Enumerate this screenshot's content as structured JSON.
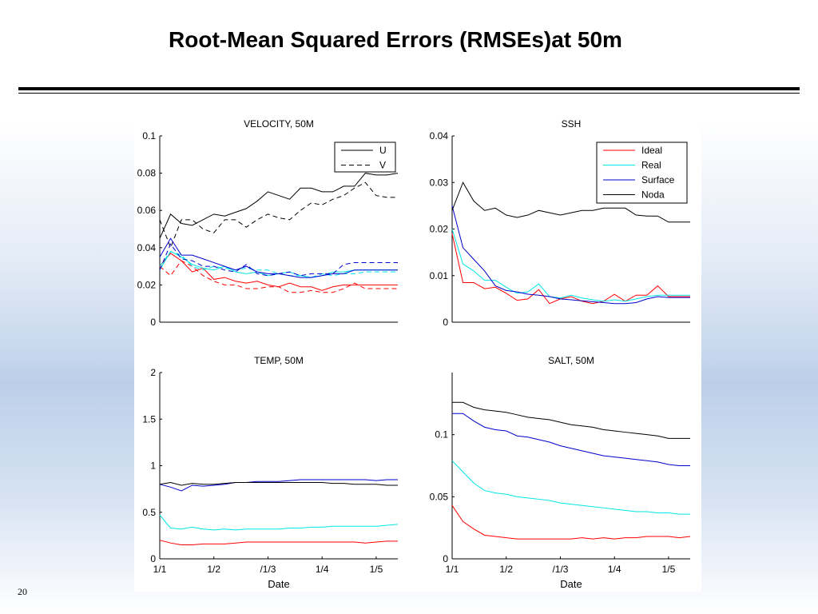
{
  "slide": {
    "title": "Root-Mean Squared Errors (RMSEs)at 50m",
    "page_number": "20"
  },
  "chart_data": [
    {
      "type": "line",
      "title": "VELOCITY, 50M",
      "xlabel": "",
      "ylabel": "",
      "xlim": [
        0,
        22
      ],
      "ylim": [
        0,
        0.1
      ],
      "yticks": [
        0,
        0.02,
        0.04,
        0.06,
        0.08,
        0.1
      ],
      "ytick_labels": [
        "0",
        "0.02",
        "0.04",
        "0.06",
        "0.08",
        "0.1"
      ],
      "xticks": [],
      "xtick_labels": [],
      "x": [
        0,
        1,
        2,
        3,
        4,
        5,
        6,
        7,
        8,
        9,
        10,
        11,
        12,
        13,
        14,
        15,
        16,
        17,
        18,
        19,
        20,
        21,
        22
      ],
      "legend": {
        "position": "top-right",
        "entries": [
          {
            "label": "U",
            "color": "#000000",
            "dash": "solid"
          },
          {
            "label": "V",
            "color": "#000000",
            "dash": "dashed"
          }
        ]
      },
      "series": [
        {
          "group": "U",
          "color": "#000000",
          "dash": "solid",
          "values": [
            0.045,
            0.058,
            0.053,
            0.052,
            0.055,
            0.058,
            0.057,
            0.059,
            0.061,
            0.065,
            0.07,
            0.068,
            0.066,
            0.072,
            0.072,
            0.07,
            0.07,
            0.073,
            0.073,
            0.08,
            0.079,
            0.079,
            0.08
          ]
        },
        {
          "group": "V",
          "color": "#000000",
          "dash": "dashed",
          "values": [
            0.055,
            0.04,
            0.055,
            0.055,
            0.05,
            0.048,
            0.055,
            0.055,
            0.051,
            0.055,
            0.058,
            0.056,
            0.055,
            0.06,
            0.064,
            0.063,
            0.066,
            0.068,
            0.072,
            0.075,
            0.068,
            0.067,
            0.067
          ]
        },
        {
          "group": "U",
          "color": "#ff0000",
          "dash": "solid",
          "values": [
            0.03,
            0.037,
            0.033,
            0.027,
            0.029,
            0.023,
            0.024,
            0.022,
            0.021,
            0.022,
            0.02,
            0.019,
            0.021,
            0.019,
            0.019,
            0.017,
            0.019,
            0.02,
            0.02,
            0.02,
            0.02,
            0.02,
            0.02
          ]
        },
        {
          "group": "V",
          "color": "#ff0000",
          "dash": "dashed",
          "values": [
            0.03,
            0.025,
            0.033,
            0.03,
            0.025,
            0.022,
            0.02,
            0.02,
            0.018,
            0.018,
            0.019,
            0.019,
            0.016,
            0.016,
            0.017,
            0.016,
            0.016,
            0.018,
            0.021,
            0.018,
            0.018,
            0.018,
            0.018
          ]
        },
        {
          "group": "U",
          "color": "#00e5e5",
          "dash": "solid",
          "values": [
            0.028,
            0.038,
            0.035,
            0.031,
            0.029,
            0.028,
            0.03,
            0.027,
            0.026,
            0.027,
            0.025,
            0.026,
            0.027,
            0.025,
            0.024,
            0.025,
            0.027,
            0.027,
            0.028,
            0.028,
            0.028,
            0.028,
            0.028
          ]
        },
        {
          "group": "V",
          "color": "#00e5e5",
          "dash": "dashed",
          "values": [
            0.03,
            0.038,
            0.036,
            0.03,
            0.028,
            0.03,
            0.029,
            0.028,
            0.029,
            0.028,
            0.028,
            0.026,
            0.025,
            0.025,
            0.024,
            0.026,
            0.025,
            0.026,
            0.026,
            0.027,
            0.027,
            0.027,
            0.027
          ]
        },
        {
          "group": "U",
          "color": "#0000cc",
          "dash": "solid",
          "values": [
            0.035,
            0.045,
            0.036,
            0.036,
            0.034,
            0.032,
            0.03,
            0.028,
            0.03,
            0.027,
            0.026,
            0.026,
            0.025,
            0.024,
            0.024,
            0.025,
            0.026,
            0.026,
            0.028,
            0.028,
            0.028,
            0.028,
            0.028
          ]
        },
        {
          "group": "V",
          "color": "#0000cc",
          "dash": "dashed",
          "values": [
            0.028,
            0.042,
            0.034,
            0.033,
            0.03,
            0.03,
            0.028,
            0.027,
            0.031,
            0.026,
            0.025,
            0.026,
            0.027,
            0.025,
            0.026,
            0.026,
            0.026,
            0.031,
            0.032,
            0.032,
            0.032,
            0.032,
            0.032
          ]
        }
      ]
    },
    {
      "type": "line",
      "title": "SSH",
      "xlabel": "",
      "ylabel": "",
      "xlim": [
        0,
        22
      ],
      "ylim": [
        0,
        0.04
      ],
      "yticks": [
        0,
        0.01,
        0.02,
        0.03,
        0.04
      ],
      "ytick_labels": [
        "0",
        "0.01",
        "0.02",
        "0.03",
        "0.04"
      ],
      "xticks": [],
      "xtick_labels": [],
      "x": [
        0,
        1,
        2,
        3,
        4,
        5,
        6,
        7,
        8,
        9,
        10,
        11,
        12,
        13,
        14,
        15,
        16,
        17,
        18,
        19,
        20,
        21,
        22
      ],
      "legend": {
        "position": "top-right",
        "entries": [
          {
            "label": "Ideal",
            "color": "#ff0000",
            "dash": "solid"
          },
          {
            "label": "Real",
            "color": "#00e5e5",
            "dash": "solid"
          },
          {
            "label": "Surface",
            "color": "#0000cc",
            "dash": "solid"
          },
          {
            "label": "Noda",
            "color": "#000000",
            "dash": "solid"
          }
        ]
      },
      "series": [
        {
          "name": "Ideal",
          "color": "#ff0000",
          "dash": "solid",
          "values": [
            0.019,
            0.0085,
            0.0085,
            0.0072,
            0.0075,
            0.0062,
            0.0047,
            0.005,
            0.007,
            0.004,
            0.005,
            0.0055,
            0.0045,
            0.004,
            0.0045,
            0.006,
            0.0045,
            0.0058,
            0.0058,
            0.0078,
            0.0055,
            0.0055,
            0.0055
          ]
        },
        {
          "name": "Real",
          "color": "#00e5e5",
          "dash": "solid",
          "values": [
            0.02,
            0.0125,
            0.011,
            0.009,
            0.009,
            0.0075,
            0.0062,
            0.0065,
            0.0082,
            0.0055,
            0.0052,
            0.0058,
            0.0052,
            0.0048,
            0.0045,
            0.0048,
            0.0045,
            0.005,
            0.0055,
            0.0058,
            0.0058,
            0.0058,
            0.0058
          ]
        },
        {
          "name": "Surface",
          "color": "#0000cc",
          "dash": "solid",
          "values": [
            0.025,
            0.016,
            0.0135,
            0.011,
            0.0078,
            0.0068,
            0.0065,
            0.006,
            0.0058,
            0.0055,
            0.005,
            0.0048,
            0.0046,
            0.0044,
            0.0042,
            0.004,
            0.004,
            0.0042,
            0.005,
            0.0055,
            0.0053,
            0.0053,
            0.0053
          ]
        },
        {
          "name": "Noda",
          "color": "#000000",
          "dash": "solid",
          "values": [
            0.024,
            0.03,
            0.026,
            0.024,
            0.0245,
            0.023,
            0.0225,
            0.023,
            0.024,
            0.0235,
            0.023,
            0.0235,
            0.024,
            0.024,
            0.0245,
            0.0245,
            0.0245,
            0.023,
            0.0228,
            0.0228,
            0.0215,
            0.0215,
            0.0215
          ]
        }
      ]
    },
    {
      "type": "line",
      "title": "TEMP, 50M",
      "xlabel": "Date",
      "ylabel": "",
      "xlim": [
        0,
        22
      ],
      "ylim": [
        0,
        2
      ],
      "yticks": [
        0,
        0.5,
        1,
        1.5,
        2
      ],
      "ytick_labels": [
        "0",
        "0.5",
        "1",
        "1.5",
        "2"
      ],
      "xticks": [
        0,
        5,
        10,
        15,
        20
      ],
      "xtick_labels": [
        "1/1",
        "1/2",
        "/1/3",
        "1/4",
        "1/5"
      ],
      "x": [
        0,
        1,
        2,
        3,
        4,
        5,
        6,
        7,
        8,
        9,
        10,
        11,
        12,
        13,
        14,
        15,
        16,
        17,
        18,
        19,
        20,
        21,
        22
      ],
      "series": [
        {
          "color": "#ff0000",
          "dash": "solid",
          "values": [
            0.2,
            0.17,
            0.15,
            0.15,
            0.16,
            0.16,
            0.16,
            0.17,
            0.18,
            0.18,
            0.18,
            0.18,
            0.18,
            0.18,
            0.18,
            0.18,
            0.18,
            0.18,
            0.18,
            0.17,
            0.18,
            0.19,
            0.19
          ]
        },
        {
          "color": "#00e5e5",
          "dash": "solid",
          "values": [
            0.47,
            0.33,
            0.32,
            0.34,
            0.32,
            0.31,
            0.32,
            0.31,
            0.32,
            0.32,
            0.32,
            0.32,
            0.33,
            0.33,
            0.34,
            0.34,
            0.35,
            0.35,
            0.35,
            0.35,
            0.35,
            0.36,
            0.37
          ]
        },
        {
          "color": "#0000cc",
          "dash": "solid",
          "values": [
            0.8,
            0.77,
            0.73,
            0.79,
            0.78,
            0.79,
            0.8,
            0.82,
            0.82,
            0.83,
            0.83,
            0.83,
            0.84,
            0.85,
            0.85,
            0.85,
            0.85,
            0.85,
            0.85,
            0.85,
            0.84,
            0.85,
            0.85
          ]
        },
        {
          "color": "#000000",
          "dash": "solid",
          "values": [
            0.8,
            0.82,
            0.79,
            0.81,
            0.8,
            0.8,
            0.81,
            0.82,
            0.82,
            0.82,
            0.82,
            0.82,
            0.82,
            0.82,
            0.82,
            0.82,
            0.81,
            0.81,
            0.8,
            0.8,
            0.8,
            0.79,
            0.79
          ]
        }
      ]
    },
    {
      "type": "line",
      "title": "SALT, 50M",
      "xlabel": "Date",
      "ylabel": "",
      "xlim": [
        0,
        22
      ],
      "ylim": [
        0,
        0.15
      ],
      "yticks": [
        0,
        0.05,
        0.1
      ],
      "ytick_labels": [
        "0",
        "0.05",
        "0.1"
      ],
      "xticks": [
        0,
        5,
        10,
        15,
        20
      ],
      "xtick_labels": [
        "1/1",
        "1/2",
        "/1/3",
        "1/4",
        "1/5"
      ],
      "x": [
        0,
        1,
        2,
        3,
        4,
        5,
        6,
        7,
        8,
        9,
        10,
        11,
        12,
        13,
        14,
        15,
        16,
        17,
        18,
        19,
        20,
        21,
        22
      ],
      "series": [
        {
          "color": "#ff0000",
          "dash": "solid",
          "values": [
            0.043,
            0.03,
            0.024,
            0.019,
            0.018,
            0.017,
            0.016,
            0.016,
            0.016,
            0.016,
            0.016,
            0.016,
            0.017,
            0.016,
            0.017,
            0.016,
            0.017,
            0.017,
            0.018,
            0.018,
            0.018,
            0.017,
            0.018
          ]
        },
        {
          "color": "#00e5e5",
          "dash": "solid",
          "values": [
            0.079,
            0.07,
            0.061,
            0.055,
            0.053,
            0.052,
            0.05,
            0.049,
            0.048,
            0.047,
            0.045,
            0.044,
            0.043,
            0.042,
            0.041,
            0.04,
            0.039,
            0.038,
            0.038,
            0.037,
            0.037,
            0.036,
            0.036
          ]
        },
        {
          "color": "#0000cc",
          "dash": "solid",
          "values": [
            0.117,
            0.117,
            0.111,
            0.106,
            0.104,
            0.103,
            0.099,
            0.098,
            0.096,
            0.094,
            0.091,
            0.089,
            0.087,
            0.085,
            0.083,
            0.082,
            0.081,
            0.08,
            0.079,
            0.078,
            0.076,
            0.075,
            0.075
          ]
        },
        {
          "color": "#000000",
          "dash": "solid",
          "values": [
            0.126,
            0.126,
            0.122,
            0.12,
            0.119,
            0.118,
            0.116,
            0.114,
            0.113,
            0.112,
            0.11,
            0.108,
            0.107,
            0.106,
            0.104,
            0.103,
            0.102,
            0.101,
            0.1,
            0.099,
            0.097,
            0.097,
            0.097
          ]
        }
      ]
    }
  ]
}
